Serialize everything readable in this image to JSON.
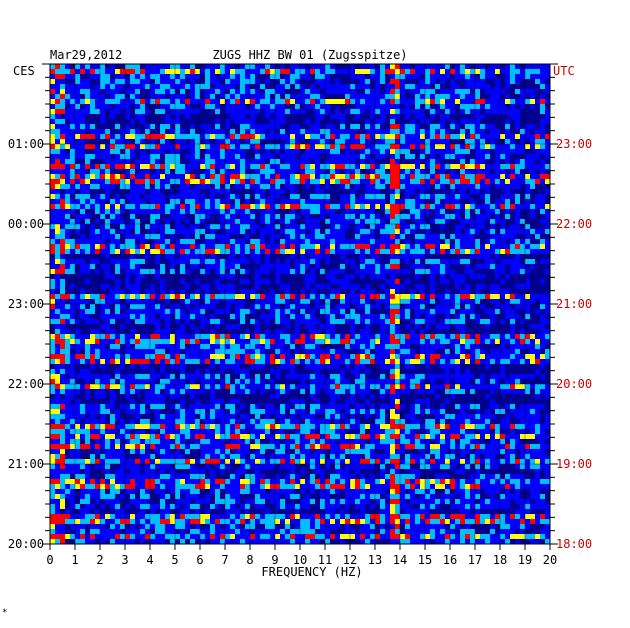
{
  "chart_data": {
    "type": "heatmap",
    "title": "ZUGS HHZ BW 01 (Zugsspitze)",
    "date": "Mar29,2012",
    "left_zone": "CES",
    "right_zone": "UTC",
    "xlabel": "FREQUENCY (HZ)",
    "x_ticks": [
      "0",
      "1",
      "2",
      "3",
      "4",
      "5",
      "6",
      "7",
      "8",
      "9",
      "10",
      "11",
      "12",
      "13",
      "14",
      "15",
      "16",
      "17",
      "18",
      "19",
      "20"
    ],
    "xlim": [
      0,
      20
    ],
    "left_time_ticks": [
      "01:00",
      "00:00",
      "23:00",
      "22:00",
      "21:00",
      "20:00"
    ],
    "right_time_ticks": [
      "23:00",
      "22:00",
      "21:00",
      "20:00",
      "19:00",
      "18:00"
    ],
    "time_span_hours": 6,
    "dominant_frequency_hz": 13.7,
    "low_frequency_band_hz": [
      0,
      0.5
    ],
    "colormap": [
      "#00008f",
      "#0000ff",
      "#00bfff",
      "#ffff00",
      "#ff0000"
    ],
    "colors": {
      "background_band": "#00008f",
      "noise": "#0000ff",
      "mid": "#00bfff",
      "high": "#ffff00",
      "peak": "#ff0000",
      "left_axis_text": "#000000",
      "right_axis_text": "#cc0000"
    },
    "footer_mark": "*"
  }
}
